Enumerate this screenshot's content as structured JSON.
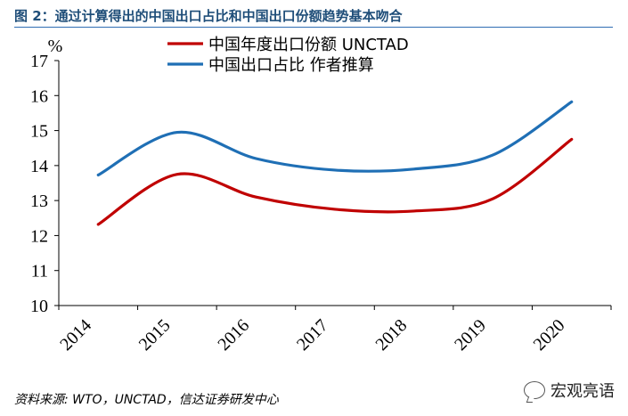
{
  "figure": {
    "title": "图 2：通过计算得出的中国出口占比和中国出口份额趋势基本吻合",
    "source": "资料来源: WTO，UNCTAD，信达证券研发中心",
    "watermark": "宏观亮语"
  },
  "chart_data": {
    "type": "line",
    "title": "图 2：通过计算得出的中国出口占比和中国出口份额趋势基本吻合",
    "y_unit": "%",
    "x": [
      "2014",
      "2015",
      "2016",
      "2017",
      "2018",
      "2019",
      "2020"
    ],
    "ylim": [
      10,
      17
    ],
    "yticks": [
      "10",
      "11",
      "12",
      "13",
      "14",
      "15",
      "16",
      "17"
    ],
    "grid": false,
    "legend_position": "top",
    "series": [
      {
        "name": "中国年度出口份额 UNCTAD",
        "color": "#c00000",
        "values": [
          12.32,
          13.75,
          13.1,
          12.75,
          12.7,
          13.05,
          14.75
        ]
      },
      {
        "name": "中国出口占比 作者推算",
        "color": "#1f6fb5",
        "values": [
          13.73,
          14.95,
          14.2,
          13.87,
          13.9,
          14.3,
          15.82
        ]
      }
    ]
  }
}
